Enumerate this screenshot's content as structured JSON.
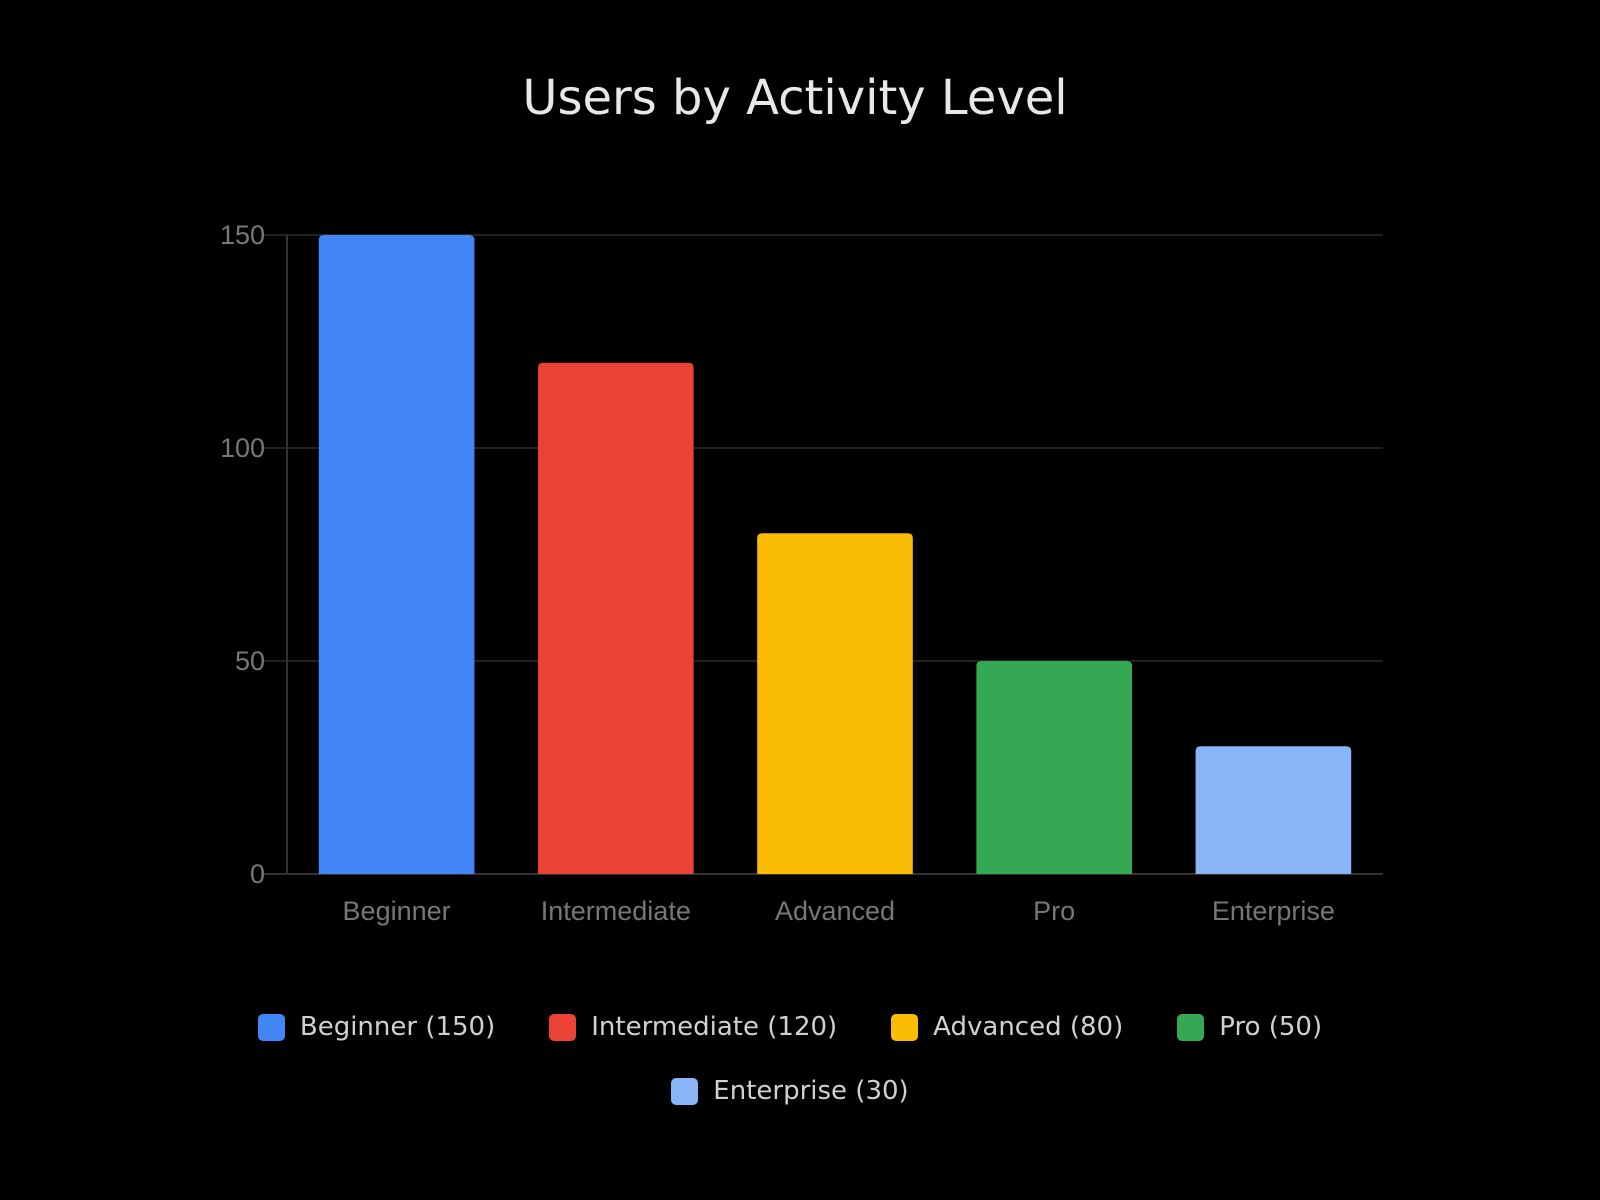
{
  "chart_data": {
    "type": "bar",
    "title": "Users by Activity Level",
    "categories": [
      "Beginner",
      "Intermediate",
      "Advanced",
      "Pro",
      "Enterprise"
    ],
    "values": [
      150,
      120,
      80,
      50,
      30
    ],
    "colors": [
      "#4285F4",
      "#EA4335",
      "#FBBC05",
      "#34A853",
      "#8AB4F8"
    ],
    "xlabel": "",
    "ylabel": "",
    "ylim": [
      0,
      150
    ],
    "yticks": [
      0,
      50,
      100,
      150
    ],
    "grid": true,
    "legend_position": "bottom",
    "legend": [
      "Beginner (150)",
      "Intermediate (120)",
      "Advanced (80)",
      "Pro (50)",
      "Enterprise (30)"
    ]
  }
}
